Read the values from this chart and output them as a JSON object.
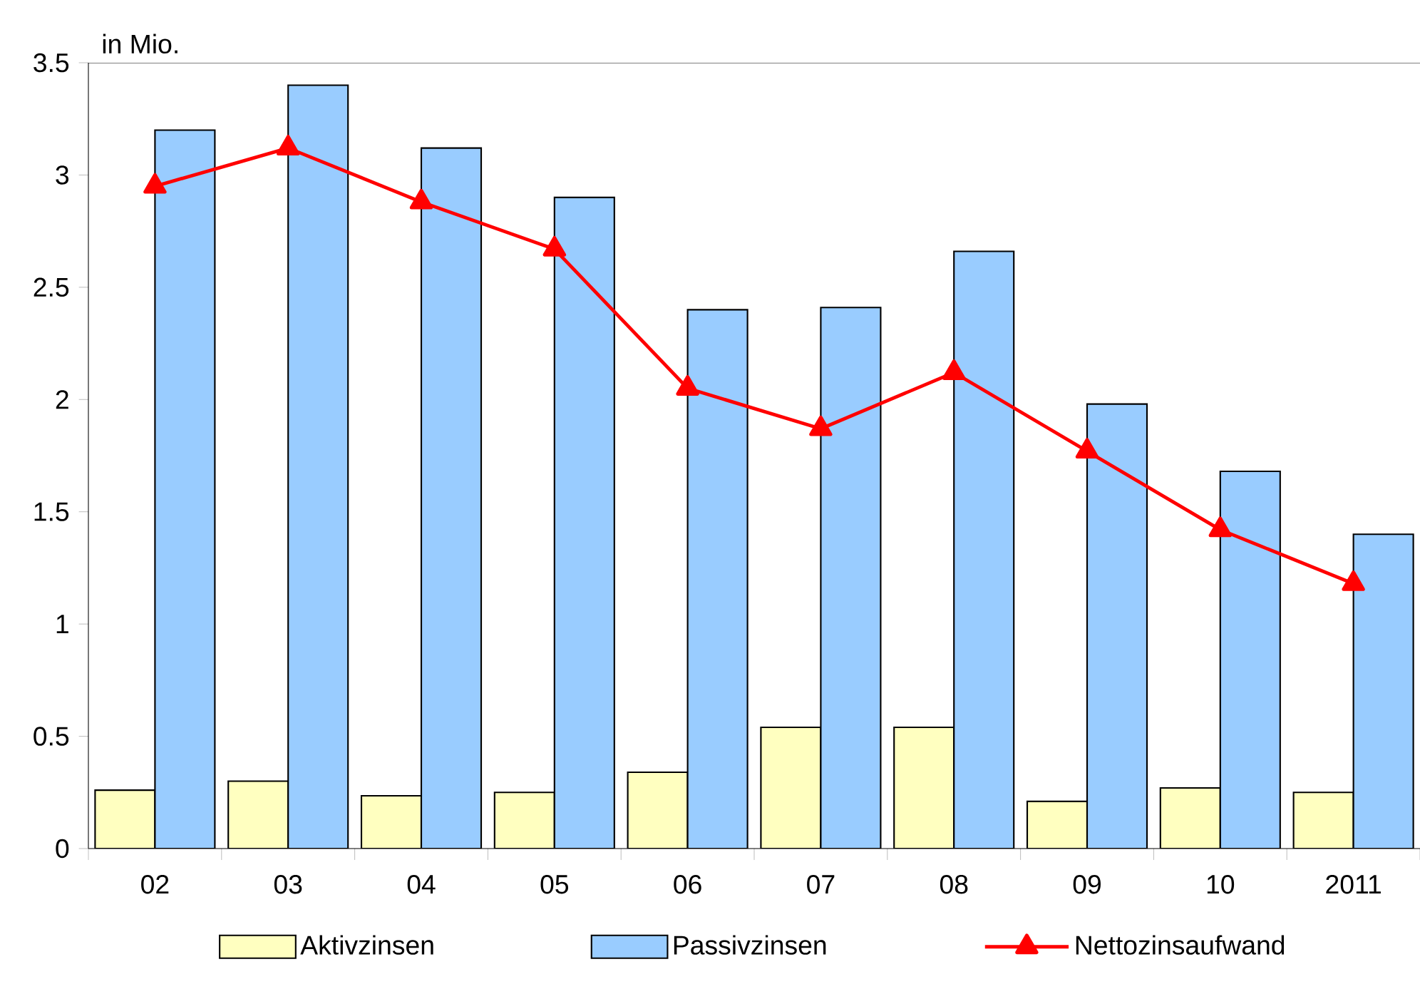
{
  "chart_data": {
    "type": "bar",
    "ylabel": "in Mio.",
    "categories": [
      "02",
      "03",
      "04",
      "05",
      "06",
      "07",
      "08",
      "09",
      "10",
      "2011"
    ],
    "series": [
      {
        "name": "Aktivzinsen",
        "type": "bar",
        "color": "#ffffc0",
        "values": [
          0.26,
          0.3,
          0.235,
          0.25,
          0.34,
          0.54,
          0.54,
          0.21,
          0.27,
          0.25
        ]
      },
      {
        "name": "Passivzinsen",
        "type": "bar",
        "color": "#99ccff",
        "values": [
          3.2,
          3.4,
          3.12,
          2.9,
          2.4,
          2.41,
          2.66,
          1.98,
          1.68,
          1.4
        ]
      },
      {
        "name": "Nettozinsaufwand",
        "type": "line",
        "color": "#ff0000",
        "marker": "triangle",
        "values": [
          2.95,
          3.12,
          2.88,
          2.67,
          2.05,
          1.87,
          2.12,
          1.77,
          1.42,
          1.18
        ]
      }
    ],
    "ylim": [
      0,
      3.5
    ],
    "yticks": [
      0,
      0.5,
      1,
      1.5,
      2,
      2.5,
      3,
      3.5
    ],
    "grid": false,
    "legend": "bottom"
  }
}
